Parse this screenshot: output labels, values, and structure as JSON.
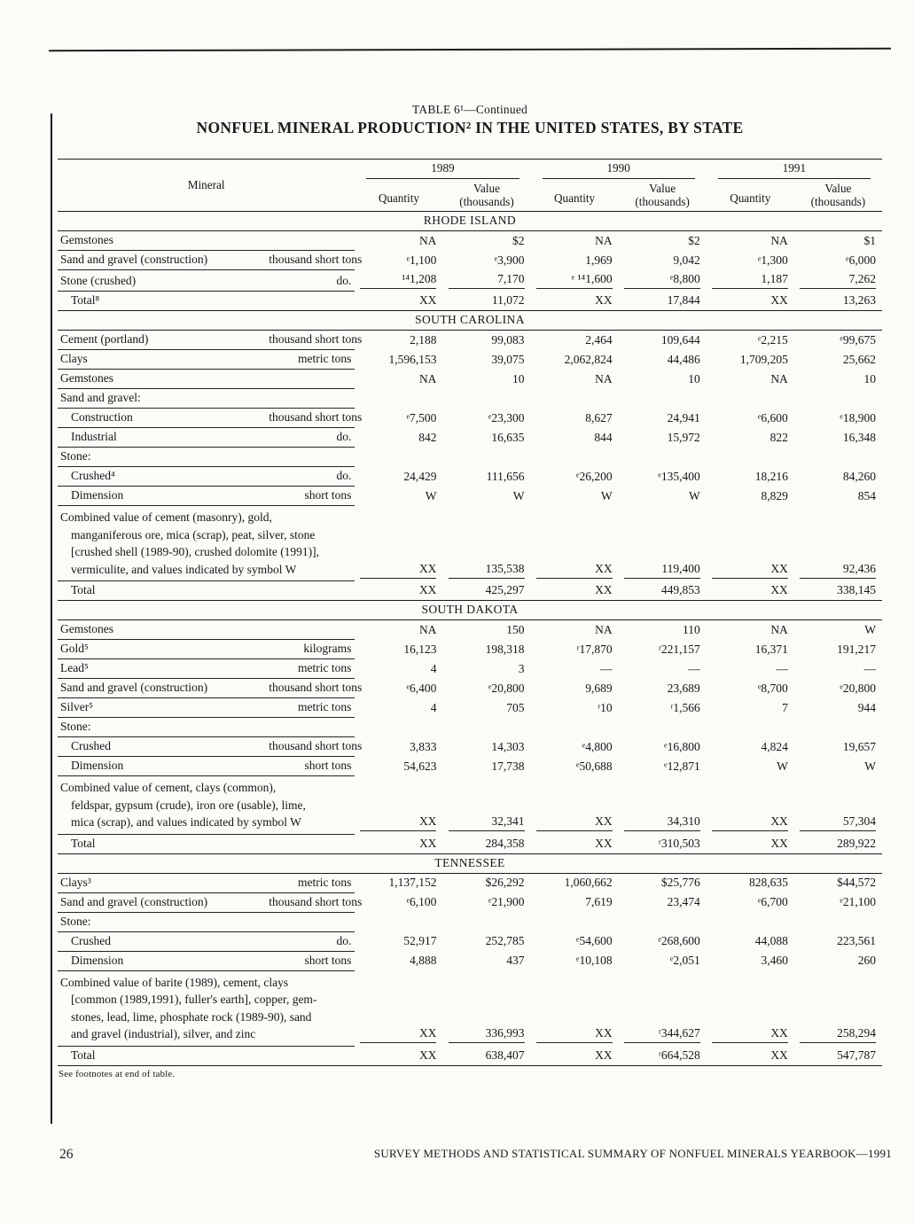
{
  "page": {
    "title_line1": "TABLE 6¹—Continued",
    "title_line2": "NONFUEL MINERAL PRODUCTION² IN THE UNITED STATES, BY STATE",
    "table_footnote": "See footnotes at end of table.",
    "page_number": "26",
    "footer_text": "SURVEY METHODS AND STATISTICAL SUMMARY OF NONFUEL MINERALS YEARBOOK—1991"
  },
  "table": {
    "mineral_header": "Mineral",
    "years": [
      "1989",
      "1990",
      "1991"
    ],
    "quantity_label": "Quantity",
    "value_label": "Value",
    "value_sublabel": "(thousands)",
    "sections": [
      {
        "state": "RHODE ISLAND",
        "rows": [
          {
            "type": "data",
            "label": "Gemstones",
            "unit": "",
            "values": [
              "NA",
              "$2",
              "NA",
              "$2",
              "NA",
              "$1"
            ]
          },
          {
            "type": "data",
            "label": "Sand and gravel (construction)",
            "unit": "thousand short tons",
            "values": [
              "ᵉ1,100",
              "ᵉ3,900",
              "1,969",
              "9,042",
              "ᵉ1,300",
              "ᵉ6,000"
            ]
          },
          {
            "type": "data",
            "label": "Stone (crushed)",
            "unit": "do.",
            "rule_under_values": true,
            "values": [
              "¹⁴1,208",
              "7,170",
              "ᵉ ¹⁴1,600",
              "ᵉ8,800",
              "1,187",
              "7,262"
            ]
          },
          {
            "type": "total",
            "label": "Total⁸",
            "values": [
              "XX",
              "11,072",
              "XX",
              "17,844",
              "XX",
              "13,263"
            ]
          }
        ]
      },
      {
        "state": "SOUTH CAROLINA",
        "rows": [
          {
            "type": "data",
            "label": "Cement (portland)",
            "unit": "thousand short tons",
            "values": [
              "2,188",
              "99,083",
              "2,464",
              "109,644",
              "ᵉ2,215",
              "ᵉ99,675"
            ]
          },
          {
            "type": "data",
            "label": "Clays",
            "unit": "metric tons",
            "values": [
              "1,596,153",
              "39,075",
              "2,062,824",
              "44,486",
              "1,709,205",
              "25,662"
            ]
          },
          {
            "type": "data",
            "label": "Gemstones",
            "unit": "",
            "values": [
              "NA",
              "10",
              "NA",
              "10",
              "NA",
              "10"
            ]
          },
          {
            "type": "subhead",
            "label": "Sand and gravel:"
          },
          {
            "type": "data",
            "indent": true,
            "label": "Construction",
            "unit": "thousand short tons",
            "values": [
              "ᵉ7,500",
              "ᵉ23,300",
              "8,627",
              "24,941",
              "ᵉ6,600",
              "ᵉ18,900"
            ]
          },
          {
            "type": "data",
            "indent": true,
            "label": "Industrial",
            "unit": "do.",
            "values": [
              "842",
              "16,635",
              "844",
              "15,972",
              "822",
              "16,348"
            ]
          },
          {
            "type": "subhead",
            "label": "Stone:"
          },
          {
            "type": "data",
            "indent": true,
            "label": "Crushed⁴",
            "unit": "do.",
            "values": [
              "24,429",
              "111,656",
              "ᵉ26,200",
              "ᵉ135,400",
              "18,216",
              "84,260"
            ]
          },
          {
            "type": "data",
            "indent": true,
            "label": "Dimension",
            "unit": "short tons",
            "values": [
              "W",
              "W",
              "W",
              "W",
              "8,829",
              "854"
            ]
          },
          {
            "type": "combined",
            "rule_under_values": true,
            "label_lines": [
              "Combined value of cement (masonry), gold,",
              "manganiferous ore, mica (scrap), peat, silver, stone",
              "[crushed shell (1989-90), crushed dolomite (1991)],",
              "vermiculite, and values indicated by symbol W"
            ],
            "values": [
              "XX",
              "135,538",
              "XX",
              "119,400",
              "XX",
              "92,436"
            ]
          },
          {
            "type": "total",
            "label": "Total",
            "values": [
              "XX",
              "425,297",
              "XX",
              "449,853",
              "XX",
              "338,145"
            ]
          }
        ]
      },
      {
        "state": "SOUTH DAKOTA",
        "rows": [
          {
            "type": "data",
            "label": "Gemstones",
            "unit": "",
            "values": [
              "NA",
              "150",
              "NA",
              "110",
              "NA",
              "W"
            ]
          },
          {
            "type": "data",
            "label": "Gold⁵",
            "unit": "kilograms",
            "values": [
              "16,123",
              "198,318",
              "ʳ17,870",
              "ʳ221,157",
              "16,371",
              "191,217"
            ]
          },
          {
            "type": "data",
            "label": "Lead⁵",
            "unit": "metric tons",
            "values": [
              "4",
              "3",
              "—",
              "—",
              "—",
              "—"
            ]
          },
          {
            "type": "data",
            "label": "Sand and gravel (construction)",
            "unit": "thousand short tons",
            "values": [
              "ᵉ6,400",
              "ᵉ20,800",
              "9,689",
              "23,689",
              "ᵉ8,700",
              "ᵉ20,800"
            ]
          },
          {
            "type": "data",
            "label": "Silver⁵",
            "unit": "metric tons",
            "values": [
              "4",
              "705",
              "ʳ10",
              "ʳ1,566",
              "7",
              "944"
            ]
          },
          {
            "type": "subhead",
            "label": "Stone:"
          },
          {
            "type": "data",
            "indent": true,
            "label": "Crushed",
            "unit": "thousand short tons",
            "values": [
              "3,833",
              "14,303",
              "ᵉ4,800",
              "ᵉ16,800",
              "4,824",
              "19,657"
            ]
          },
          {
            "type": "data",
            "indent": true,
            "label": "Dimension",
            "unit": "short tons",
            "values": [
              "54,623",
              "17,738",
              "ᵉ50,688",
              "ᵉ12,871",
              "W",
              "W"
            ]
          },
          {
            "type": "combined",
            "rule_under_values": true,
            "label_lines": [
              "Combined value of cement, clays (common),",
              "feldspar, gypsum (crude), iron ore (usable), lime,",
              "mica (scrap), and values indicated by symbol W"
            ],
            "values": [
              "XX",
              "32,341",
              "XX",
              "34,310",
              "XX",
              "57,304"
            ]
          },
          {
            "type": "total",
            "label": "Total",
            "values": [
              "XX",
              "284,358",
              "XX",
              "ʳ310,503",
              "XX",
              "289,922"
            ]
          }
        ]
      },
      {
        "state": "TENNESSEE",
        "rows": [
          {
            "type": "data",
            "label": "Clays³",
            "unit": "metric tons",
            "values": [
              "1,137,152",
              "$26,292",
              "1,060,662",
              "$25,776",
              "828,635",
              "$44,572"
            ]
          },
          {
            "type": "data",
            "label": "Sand and gravel (construction)",
            "unit": "thousand short tons",
            "values": [
              "ᵉ6,100",
              "ᵉ21,900",
              "7,619",
              "23,474",
              "ᵉ6,700",
              "ᵉ21,100"
            ]
          },
          {
            "type": "subhead",
            "label": "Stone:"
          },
          {
            "type": "data",
            "indent": true,
            "label": "Crushed",
            "unit": "do.",
            "values": [
              "52,917",
              "252,785",
              "ᵉ54,600",
              "ᵉ268,600",
              "44,088",
              "223,561"
            ]
          },
          {
            "type": "data",
            "indent": true,
            "label": "Dimension",
            "unit": "short tons",
            "values": [
              "4,888",
              "437",
              "ᵉ10,108",
              "ᵉ2,051",
              "3,460",
              "260"
            ]
          },
          {
            "type": "combined",
            "rule_under_values": true,
            "label_lines": [
              "Combined value of barite (1989), cement, clays",
              "[common (1989,1991), fuller's earth], copper, gem-",
              "stones, lead, lime, phosphate rock (1989-90), sand",
              "and gravel (industrial), silver, and zinc"
            ],
            "values": [
              "XX",
              "336,993",
              "XX",
              "ʳ344,627",
              "XX",
              "258,294"
            ]
          },
          {
            "type": "total",
            "label": "Total",
            "values": [
              "XX",
              "638,407",
              "XX",
              "ʳ664,528",
              "XX",
              "547,787"
            ]
          }
        ]
      }
    ]
  }
}
